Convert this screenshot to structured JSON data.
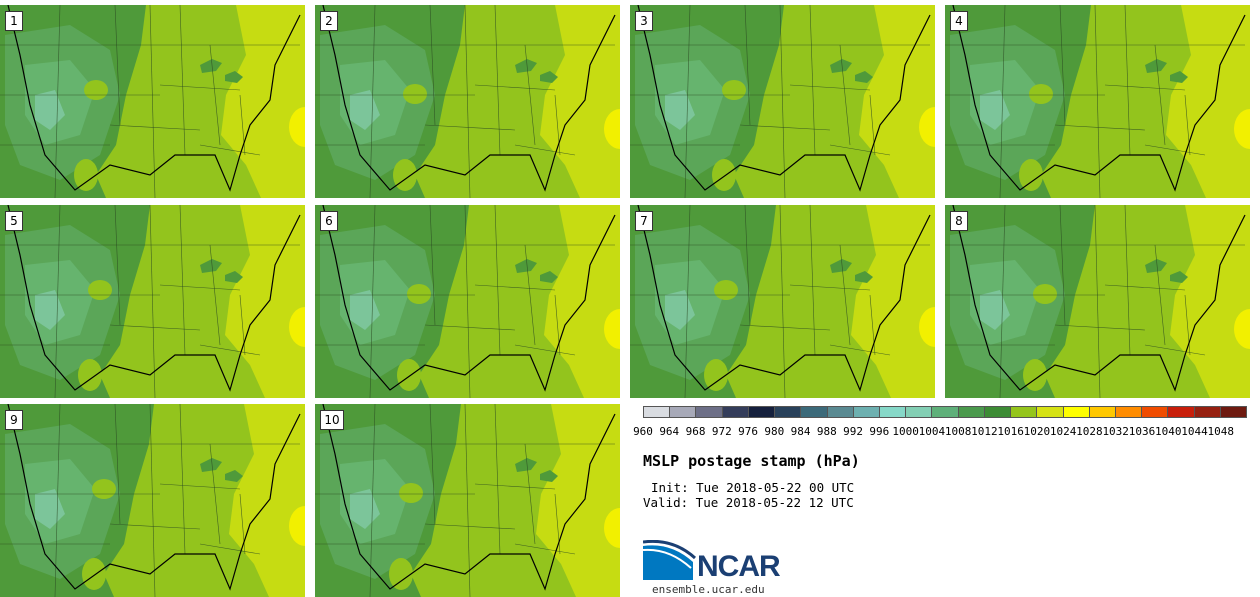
{
  "panels": [
    {
      "label": "1"
    },
    {
      "label": "2"
    },
    {
      "label": "3"
    },
    {
      "label": "4"
    },
    {
      "label": "5"
    },
    {
      "label": "6"
    },
    {
      "label": "7"
    },
    {
      "label": "8"
    },
    {
      "label": "9"
    },
    {
      "label": "10"
    }
  ],
  "colorbar": {
    "colors": [
      "#d9dce1",
      "#a7a9b8",
      "#6d6f87",
      "#343d5b",
      "#15203d",
      "#29415b",
      "#3c6a7a",
      "#5a8a92",
      "#6db0b0",
      "#86d8c8",
      "#83cfb4",
      "#5fb07a",
      "#4b9a4d",
      "#3d8c35",
      "#95c51c",
      "#d6e214",
      "#ffff00",
      "#ffc800",
      "#ff8c00",
      "#f04c00",
      "#c81e0a",
      "#962010",
      "#6e1a10"
    ],
    "ticks": [
      "960",
      "964",
      "968",
      "972",
      "976",
      "980",
      "984",
      "988",
      "992",
      "996",
      "1000",
      "1004",
      "1008",
      "1012",
      "1016",
      "1020",
      "1024",
      "1028",
      "1032",
      "1036",
      "1040",
      "1044",
      "1048"
    ]
  },
  "title": "MSLP postage stamp (hPa)",
  "init": "Init: Tue 2018-05-22 00 UTC",
  "valid": "Valid: Tue 2018-05-22 12 UTC",
  "logo": {
    "text": "NCAR",
    "url": "ensemble.ucar.edu",
    "color": "#1b3f73",
    "accent": "#0078c1"
  }
}
